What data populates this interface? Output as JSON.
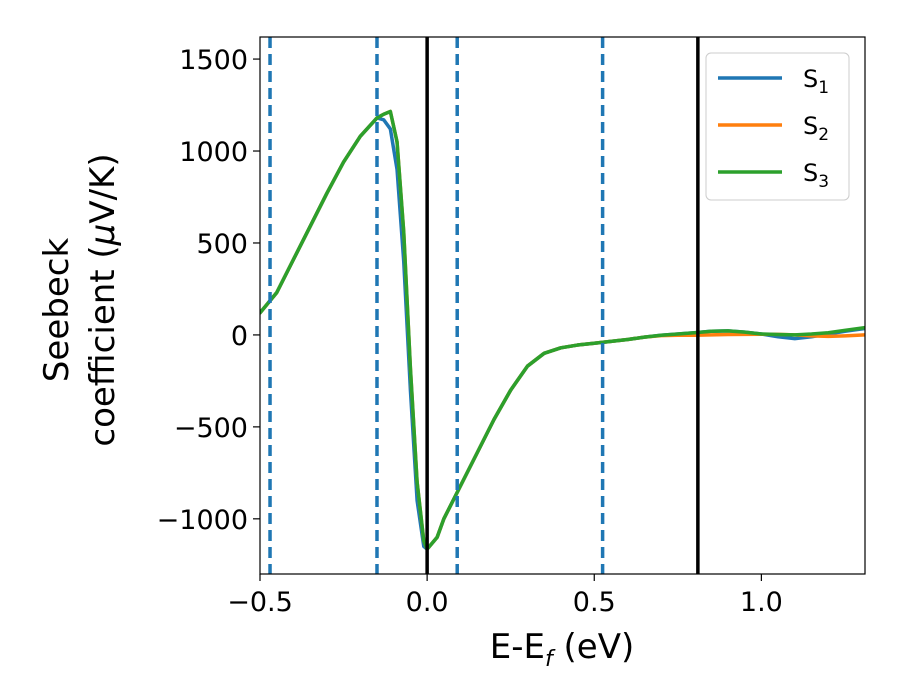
{
  "chart_data": {
    "type": "line",
    "title": "",
    "xlabel": "E-E",
    "xlabel_sub": "f",
    "xlabel_unit": " (eV)",
    "ylabel_line1": "Seebeck",
    "ylabel_line2": "coefficient  (",
    "ylabel_mu": "μ",
    "ylabel_unit": "V/K)",
    "xlim": [
      -0.5,
      1.31
    ],
    "ylim": [
      -1300,
      1620
    ],
    "x_ticks": [
      {
        "value": -0.5,
        "label": "−0.5"
      },
      {
        "value": 0.0,
        "label": "0.0"
      },
      {
        "value": 0.5,
        "label": "0.5"
      },
      {
        "value": 1.0,
        "label": "1.0"
      }
    ],
    "y_ticks": [
      {
        "value": 1500,
        "label": "1500"
      },
      {
        "value": 1000,
        "label": "1000"
      },
      {
        "value": 500,
        "label": "500"
      },
      {
        "value": 0,
        "label": "0"
      },
      {
        "value": -500,
        "label": "−500"
      },
      {
        "value": -1000,
        "label": "−1000"
      }
    ],
    "grid": false,
    "legend_position": "top-right",
    "colors": {
      "S1": "#1f77b4",
      "S2": "#ff7f0e",
      "S3": "#2ca02c",
      "vline_solid": "#000000",
      "vline_dashed": "#1f77b4"
    },
    "vlines_solid": [
      0.0,
      0.81
    ],
    "vlines_dashed": [
      -0.47,
      -0.15,
      0.09,
      0.525
    ],
    "series": [
      {
        "name": "S",
        "sub": "1",
        "color": "#1f77b4",
        "x": [
          -0.5,
          -0.45,
          -0.4,
          -0.35,
          -0.3,
          -0.25,
          -0.2,
          -0.15,
          -0.13,
          -0.11,
          -0.09,
          -0.07,
          -0.05,
          -0.03,
          -0.01,
          0.0,
          0.03,
          0.05,
          0.1,
          0.15,
          0.2,
          0.25,
          0.3,
          0.35,
          0.4,
          0.45,
          0.5,
          0.55,
          0.6,
          0.65,
          0.7,
          0.75,
          0.8,
          0.85,
          0.9,
          0.95,
          1.0,
          1.05,
          1.1,
          1.15,
          1.2,
          1.25,
          1.31
        ],
        "y": [
          120,
          230,
          410,
          590,
          770,
          940,
          1080,
          1180,
          1170,
          1120,
          900,
          400,
          -300,
          -900,
          -1150,
          -1165,
          -1100,
          -1000,
          -820,
          -640,
          -460,
          -300,
          -170,
          -100,
          -70,
          -55,
          -45,
          -35,
          -25,
          -12,
          -2,
          5,
          12,
          20,
          22,
          15,
          5,
          -10,
          -20,
          -10,
          5,
          20,
          35
        ]
      },
      {
        "name": "S",
        "sub": "2",
        "color": "#ff7f0e",
        "x": [
          -0.5,
          -0.45,
          -0.4,
          -0.35,
          -0.3,
          -0.25,
          -0.2,
          -0.15,
          -0.13,
          -0.11,
          -0.09,
          -0.07,
          -0.05,
          -0.03,
          -0.01,
          0.0,
          0.03,
          0.05,
          0.1,
          0.15,
          0.2,
          0.25,
          0.3,
          0.35,
          0.4,
          0.45,
          0.5,
          0.55,
          0.6,
          0.65,
          0.7,
          0.75,
          0.8,
          0.85,
          0.9,
          0.95,
          1.0,
          1.05,
          1.1,
          1.15,
          1.2,
          1.25,
          1.31
        ],
        "y": [
          120,
          230,
          410,
          590,
          770,
          940,
          1080,
          1180,
          1200,
          1215,
          1050,
          560,
          -180,
          -800,
          -1120,
          -1165,
          -1100,
          -1000,
          -820,
          -640,
          -460,
          -300,
          -170,
          -100,
          -70,
          -55,
          -45,
          -35,
          -25,
          -12,
          -4,
          -2,
          -2,
          0,
          2,
          3,
          4,
          3,
          0,
          -5,
          -8,
          -5,
          0
        ]
      },
      {
        "name": "S",
        "sub": "3",
        "color": "#2ca02c",
        "x": [
          -0.5,
          -0.45,
          -0.4,
          -0.35,
          -0.3,
          -0.25,
          -0.2,
          -0.15,
          -0.13,
          -0.11,
          -0.09,
          -0.07,
          -0.05,
          -0.03,
          -0.01,
          0.0,
          0.03,
          0.05,
          0.1,
          0.15,
          0.2,
          0.25,
          0.3,
          0.35,
          0.4,
          0.45,
          0.5,
          0.55,
          0.6,
          0.65,
          0.7,
          0.75,
          0.8,
          0.85,
          0.9,
          0.95,
          1.0,
          1.05,
          1.1,
          1.15,
          1.2,
          1.25,
          1.31
        ],
        "y": [
          120,
          230,
          410,
          590,
          770,
          940,
          1080,
          1180,
          1200,
          1215,
          1050,
          560,
          -180,
          -800,
          -1120,
          -1165,
          -1100,
          -1000,
          -820,
          -640,
          -460,
          -300,
          -170,
          -100,
          -70,
          -55,
          -45,
          -35,
          -25,
          -12,
          -2,
          5,
          12,
          20,
          22,
          15,
          5,
          2,
          0,
          5,
          12,
          25,
          40
        ]
      }
    ]
  }
}
